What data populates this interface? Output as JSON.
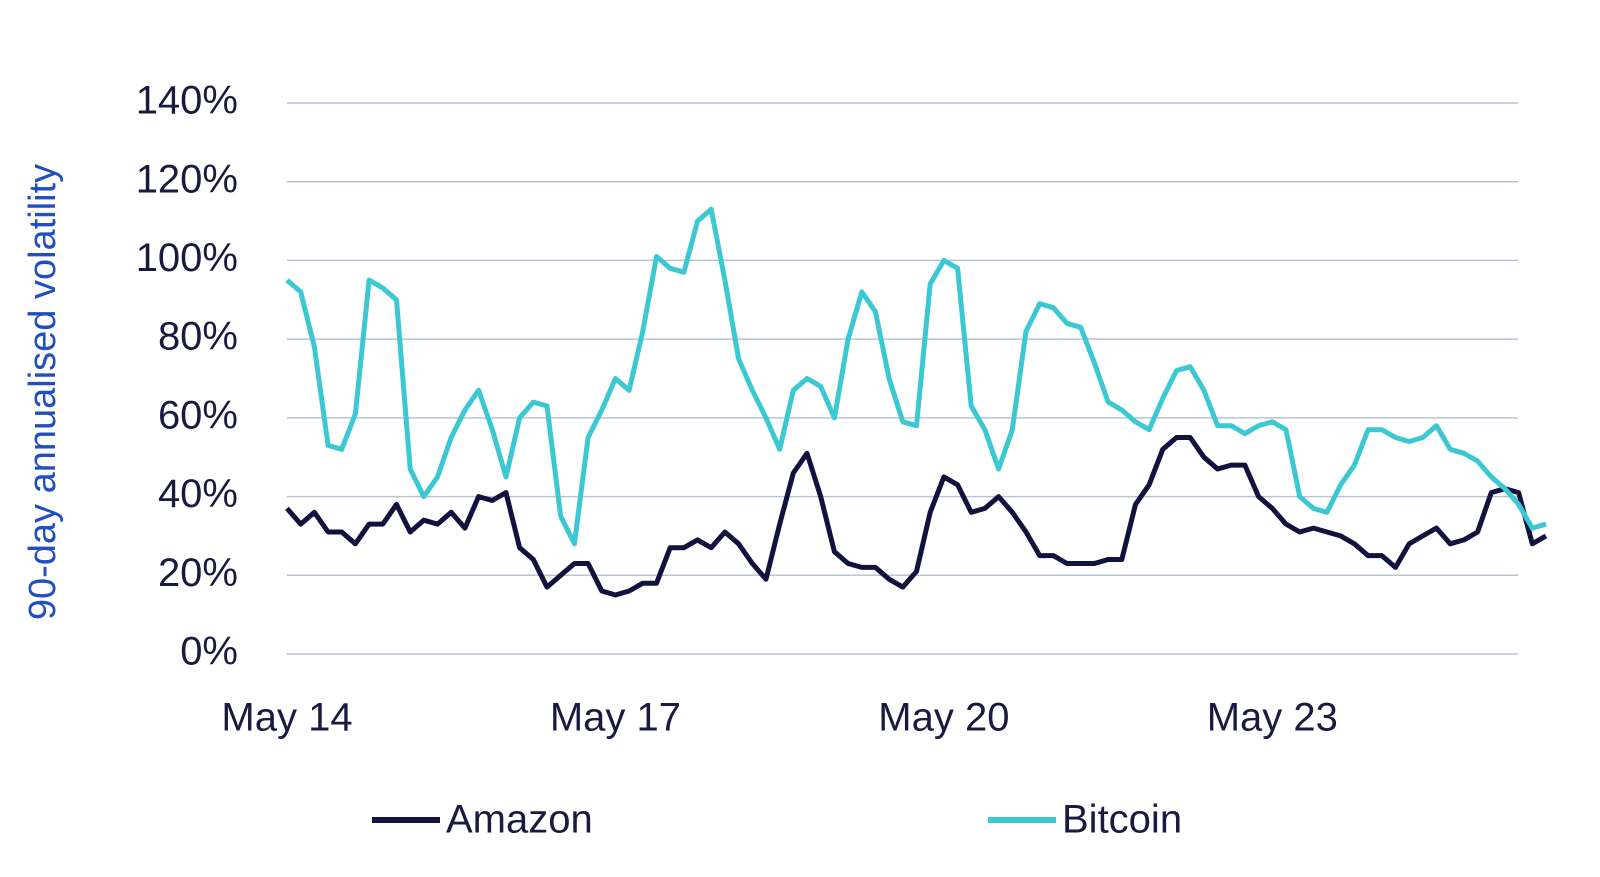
{
  "chart_data": {
    "type": "line",
    "y_label": "90-day annualised volatility",
    "categories": [
      "May 14",
      null,
      null,
      null,
      null,
      null,
      null,
      null,
      null,
      null,
      null,
      null,
      null,
      null,
      null,
      null,
      null,
      null,
      null,
      null,
      null,
      null,
      null,
      null,
      "May 17",
      null,
      null,
      null,
      null,
      null,
      null,
      null,
      null,
      null,
      null,
      null,
      null,
      null,
      null,
      null,
      null,
      null,
      null,
      null,
      null,
      null,
      null,
      null,
      "May 20",
      null,
      null,
      null,
      null,
      null,
      null,
      null,
      null,
      null,
      null,
      null,
      null,
      null,
      null,
      null,
      null,
      null,
      null,
      null,
      null,
      null,
      null,
      null,
      "May 23",
      null,
      null,
      null,
      null,
      null,
      null,
      null,
      null,
      null,
      null,
      null,
      null,
      null,
      null,
      null,
      null,
      null,
      null,
      null,
      null
    ],
    "series": [
      {
        "name": "Amazon",
        "color": "#12123e",
        "values": [
          37,
          33,
          36,
          31,
          31,
          28,
          33,
          33,
          38,
          31,
          34,
          33,
          36,
          32,
          40,
          39,
          41,
          27,
          24,
          17,
          20,
          23,
          23,
          16,
          15,
          16,
          18,
          18,
          27,
          27,
          29,
          27,
          31,
          28,
          23,
          19,
          33,
          46,
          51,
          40,
          26,
          23,
          22,
          22,
          19,
          17,
          21,
          36,
          45,
          43,
          36,
          37,
          40,
          36,
          31,
          25,
          25,
          23,
          23,
          23,
          24,
          24,
          38,
          43,
          52,
          55,
          55,
          50,
          47,
          48,
          48,
          40,
          37,
          33,
          31,
          32,
          31,
          30,
          28,
          25,
          25,
          22,
          28,
          30,
          32,
          28,
          29,
          31,
          41,
          42,
          41,
          28,
          30
        ]
      },
      {
        "name": "Bitcoin",
        "color": "#3cc8d2",
        "values": [
          95,
          92,
          78,
          53,
          52,
          61,
          95,
          93,
          90,
          47,
          40,
          45,
          55,
          62,
          67,
          57,
          45,
          60,
          64,
          63,
          35,
          28,
          55,
          62,
          70,
          67,
          82,
          101,
          98,
          97,
          110,
          113,
          95,
          75,
          67,
          60,
          52,
          67,
          70,
          68,
          60,
          80,
          92,
          87,
          70,
          59,
          58,
          94,
          100,
          98,
          63,
          57,
          47,
          57,
          82,
          89,
          88,
          84,
          83,
          74,
          64,
          62,
          59,
          57,
          65,
          72,
          73,
          67,
          58,
          58,
          56,
          58,
          59,
          57,
          40,
          37,
          36,
          43,
          48,
          57,
          57,
          55,
          54,
          55,
          58,
          52,
          51,
          49,
          45,
          42,
          38,
          32,
          33
        ]
      }
    ],
    "ylim": [
      0,
      140
    ],
    "yticks": [
      {
        "value": 0,
        "label": "0%"
      },
      {
        "value": 20,
        "label": "20%"
      },
      {
        "value": 40,
        "label": "40%"
      },
      {
        "value": 60,
        "label": "60%"
      },
      {
        "value": 80,
        "label": "80%"
      },
      {
        "value": 100,
        "label": "100%"
      },
      {
        "value": 120,
        "label": "120%"
      },
      {
        "value": 140,
        "label": "140%"
      }
    ],
    "grid": true
  }
}
